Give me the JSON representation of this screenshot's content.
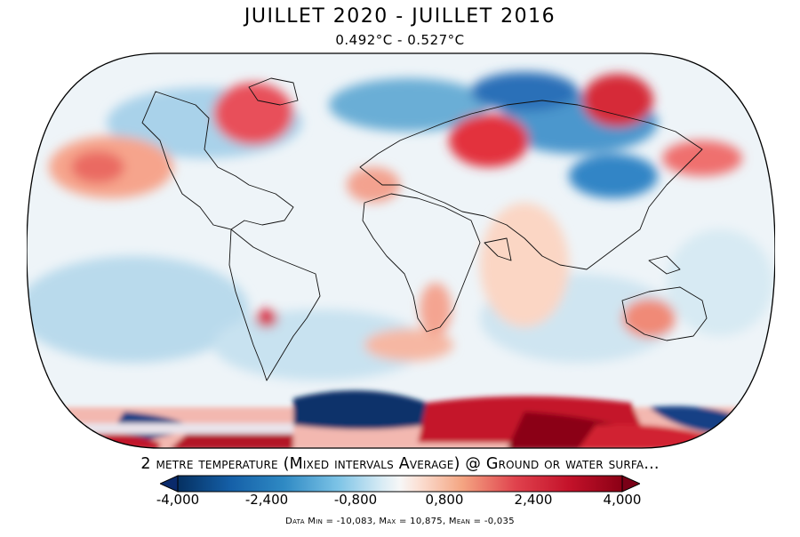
{
  "title": "JUILLET 2020 - JUILLET 2016",
  "subtitle": "0.492°C - 0.527°C",
  "variable_title": "2 metre temperature (Mixed intervals Average) @ Ground or water surfa...",
  "stats": "Data Min = -10,083, Max = 10,875, Mean = -0,035",
  "colorbar": {
    "ticks": [
      "-4,000",
      "-2,400",
      "-0,800",
      "0,800",
      "2,400",
      "4,000"
    ],
    "min": -4.0,
    "max": 4.0,
    "colors": {
      "under": "#0a2a6b",
      "over": "#7a0017",
      "stops": [
        "#053061",
        "#2166ac",
        "#4393c3",
        "#92c5de",
        "#d1e5f0",
        "#f7f7f7",
        "#fddbc7",
        "#f4a582",
        "#d6604d",
        "#b2182b",
        "#67001f"
      ]
    }
  },
  "map_colors": {
    "ocean_base": "#eaf3f9",
    "cold_strong": "#08306b",
    "cold": "#2b7bba",
    "cool": "#9ecae1",
    "warm": "#f4a582",
    "hot": "#d6202a",
    "hot_strong": "#8b0015",
    "coast": "#111111"
  }
}
